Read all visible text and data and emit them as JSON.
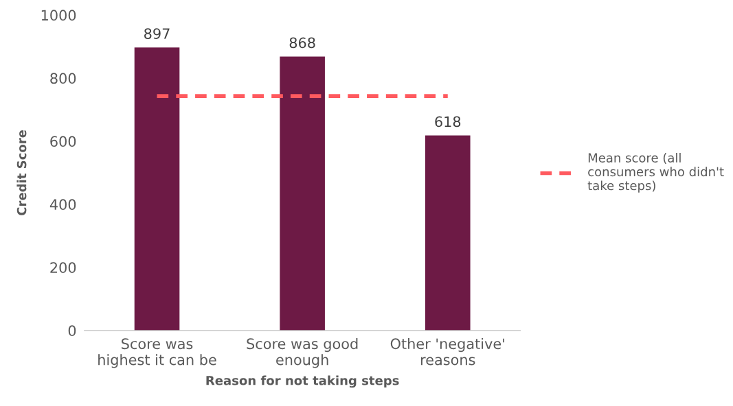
{
  "chart_data": {
    "type": "bar",
    "xlabel": "Reason for not taking steps",
    "ylabel": "Credit Score",
    "categories": [
      "Score was\nhighest it can be",
      "Score was good\nenough",
      "Other 'negative'\nreasons"
    ],
    "series": [
      {
        "color": "#6d1a45",
        "values": [
          897,
          868,
          618
        ],
        "value_labels": [
          "897",
          "868",
          "618"
        ]
      },
      {
        "type": "line",
        "name": "Mean score (all\nconsumers who didn't\ntake steps)",
        "color": "#ff5a5f",
        "values": [
          743,
          743,
          743
        ],
        "line_style": "dashed"
      }
    ],
    "ylim": [
      0,
      1000
    ],
    "yticks": [
      0,
      200,
      400,
      600,
      800,
      1000
    ],
    "grid": false,
    "legend": "right",
    "marker": "none"
  }
}
